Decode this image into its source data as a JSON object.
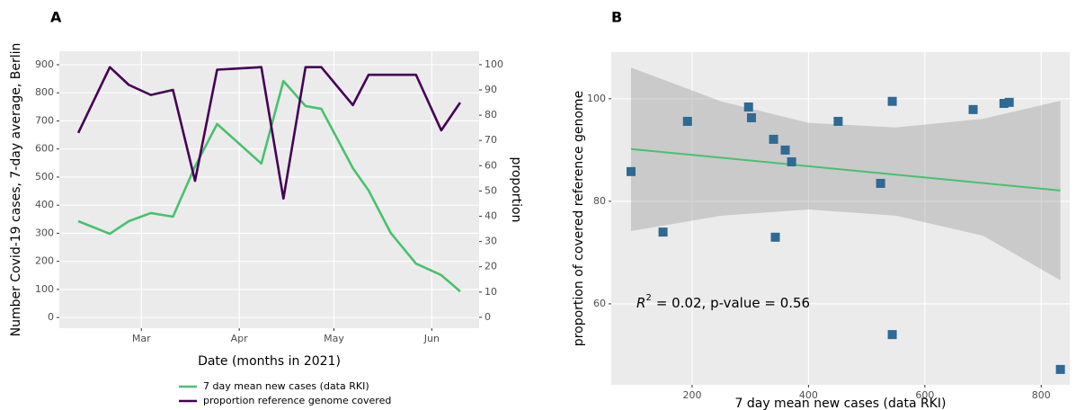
{
  "chart_data": [
    {
      "type": "line",
      "panel_label": "A",
      "x": [
        40,
        50,
        56,
        63,
        70,
        77,
        84,
        98,
        105,
        112,
        117,
        127,
        132,
        139,
        147,
        155,
        161
      ],
      "xlim": [
        34,
        167
      ],
      "xticks": [
        {
          "value": 60,
          "label": "Mar"
        },
        {
          "value": 91,
          "label": "Apr"
        },
        {
          "value": 121,
          "label": "May"
        },
        {
          "value": 152,
          "label": "Jun"
        }
      ],
      "ylim": [
        -38,
        948
      ],
      "yticks": [
        0,
        100,
        200,
        300,
        400,
        500,
        600,
        700,
        800,
        900
      ],
      "y2lim": [
        -4.3,
        105.3
      ],
      "y2ticks": [
        0,
        10,
        20,
        30,
        40,
        50,
        60,
        70,
        80,
        90,
        100
      ],
      "xlabel": "Date (months in 2021)",
      "ylabel": "Number Covid-19 cases, 7-day average, Berlin",
      "y2label": "proportion",
      "grid": true,
      "legend": "bottom",
      "series": [
        {
          "name": "7 day mean new cases (data RKI)",
          "color": "#48c16e",
          "values": [
            343,
            298,
            343,
            372,
            359,
            538,
            689,
            548,
            842,
            753,
            743,
            532,
            452,
            301,
            192,
            151,
            93
          ]
        },
        {
          "name": "proportion reference genome covered",
          "color": "#440154",
          "axis": "y2",
          "values": [
            73,
            99,
            92,
            88,
            90,
            54,
            98,
            99,
            47,
            99,
            99,
            84,
            96,
            96,
            96,
            74,
            85
          ]
        }
      ]
    },
    {
      "type": "scatter",
      "panel_label": "B",
      "x": [
        95,
        150,
        192,
        297,
        302,
        340,
        360,
        371,
        343,
        451,
        524,
        544,
        544,
        683,
        736,
        745,
        833
      ],
      "values": [
        85.8,
        74.0,
        95.6,
        98.4,
        96.3,
        92.1,
        90.0,
        87.7,
        73.0,
        95.6,
        83.5,
        99.5,
        54.0,
        97.9,
        99.1,
        99.3,
        47.2
      ],
      "color": "#2e6a93",
      "xlim": [
        61,
        849
      ],
      "ylim": [
        44.2,
        109.1
      ],
      "xticks": [
        200,
        400,
        600,
        800
      ],
      "yticks": [
        60,
        80,
        100
      ],
      "xlabel": "7 day mean new cases (data RKI)",
      "ylabel": "proportion of covered reference genome",
      "grid": true,
      "fit": {
        "x": [
          95,
          833
        ],
        "y": [
          90.2,
          82.1
        ],
        "color": "#48c16e"
      },
      "band": {
        "x": [
          95,
          250,
          400,
          550,
          700,
          833
        ],
        "upper": [
          106.1,
          99.5,
          95.3,
          94.4,
          96.1,
          99.6
        ],
        "lower": [
          74.2,
          77.2,
          78.4,
          77.2,
          73.3,
          64.6
        ]
      },
      "annotation": {
        "symbol": "R",
        "exponent": "2",
        "text": "= 0.02, p-value = 0.56"
      }
    }
  ]
}
